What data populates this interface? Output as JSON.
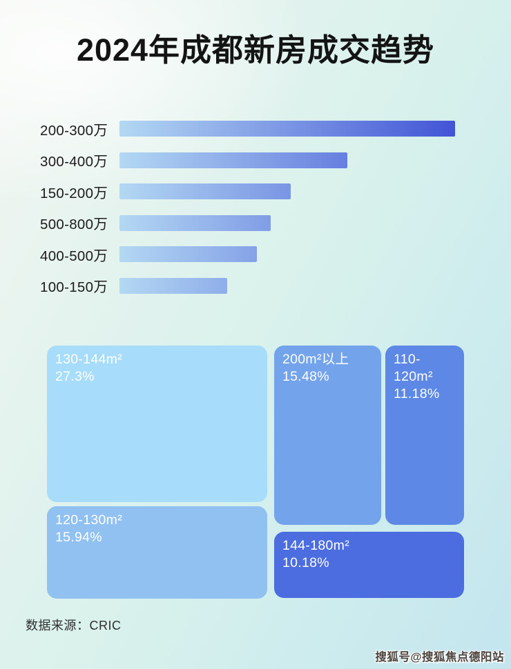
{
  "page": {
    "title": "2024年成都新房成交趋势",
    "source_label": "数据来源：CRIC",
    "watermark": "搜狐号@搜狐焦点德阳站",
    "background_accents": [
      "#f4f6f2",
      "#d9f1ec",
      "#c3e5ee"
    ]
  },
  "chart_data": [
    {
      "type": "bar",
      "orientation": "horizontal",
      "title": "2024年成都新房成交趋势",
      "categories": [
        "200-300万",
        "300-400万",
        "150-200万",
        "500-800万",
        "400-500万",
        "100-150万"
      ],
      "values_pct_of_max": [
        100,
        68,
        51,
        45,
        41,
        32
      ],
      "value_labels_shown": false,
      "axis_shown": false,
      "bar_gradient": [
        "#b3d8f3",
        "#4254d6"
      ],
      "note": "bar lengths estimated relative to longest bar; no numeric axis in source image"
    },
    {
      "type": "treemap",
      "items": [
        {
          "label": "130-144m²",
          "pct_label": "27.3%",
          "value": 27.3,
          "color": "#a7dcfa"
        },
        {
          "label": "200m²以上",
          "pct_label": "15.48%",
          "value": 15.48,
          "color": "#73a3ea"
        },
        {
          "label": "110-120m²",
          "pct_label": "11.18%",
          "value": 11.18,
          "color": "#5e88e6"
        },
        {
          "label": "120-130m²",
          "pct_label": "15.94%",
          "value": 15.94,
          "color": "#90c1f0"
        },
        {
          "label": "144-180m²",
          "pct_label": "10.18%",
          "value": 10.18,
          "color": "#4b6de0"
        }
      ]
    }
  ]
}
